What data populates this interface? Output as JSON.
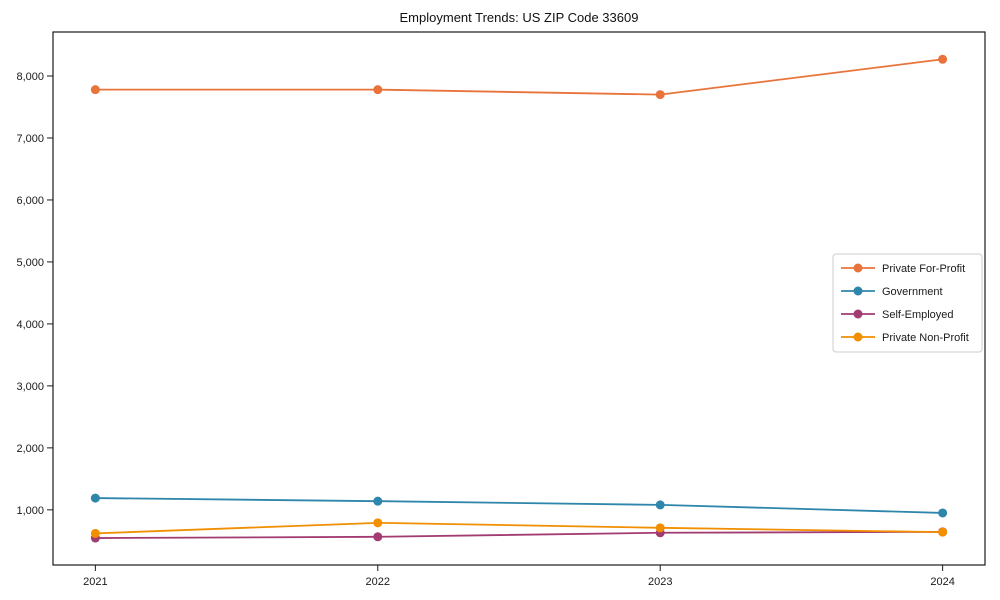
{
  "page": {
    "background_color": "#ffffff",
    "text_color": "#1a1a1a"
  },
  "chart_data": {
    "type": "line",
    "title": "Employment Trends: US ZIP Code 33609",
    "categories": [
      "2021",
      "2022",
      "2023",
      "2024"
    ],
    "series": [
      {
        "name": "Private For-Profit",
        "color": "#E8743B",
        "values": [
          7780,
          7780,
          7700,
          8270
        ]
      },
      {
        "name": "Government",
        "color": "#2E86AB",
        "values": [
          1190,
          1140,
          1080,
          950
        ]
      },
      {
        "name": "Self-Employed",
        "color": "#A23B72",
        "values": [
          545,
          565,
          630,
          645
        ]
      },
      {
        "name": "Private Non-Profit",
        "color": "#F18F01",
        "values": [
          620,
          790,
          710,
          640
        ]
      }
    ],
    "xlabel": "",
    "ylabel": "",
    "ylim": [
      110,
      8710
    ],
    "yticks": [
      1000,
      2000,
      3000,
      4000,
      5000,
      6000,
      7000,
      8000
    ],
    "ytick_labels": [
      "1,000",
      "2,000",
      "3,000",
      "4,000",
      "5,000",
      "6,000",
      "7,000",
      "8,000"
    ],
    "grid": false,
    "legend_position": "right-middle",
    "spine_color": "#1a1a1a",
    "legend_border_color": "#cccccc",
    "legend_background": "#ffffff"
  }
}
